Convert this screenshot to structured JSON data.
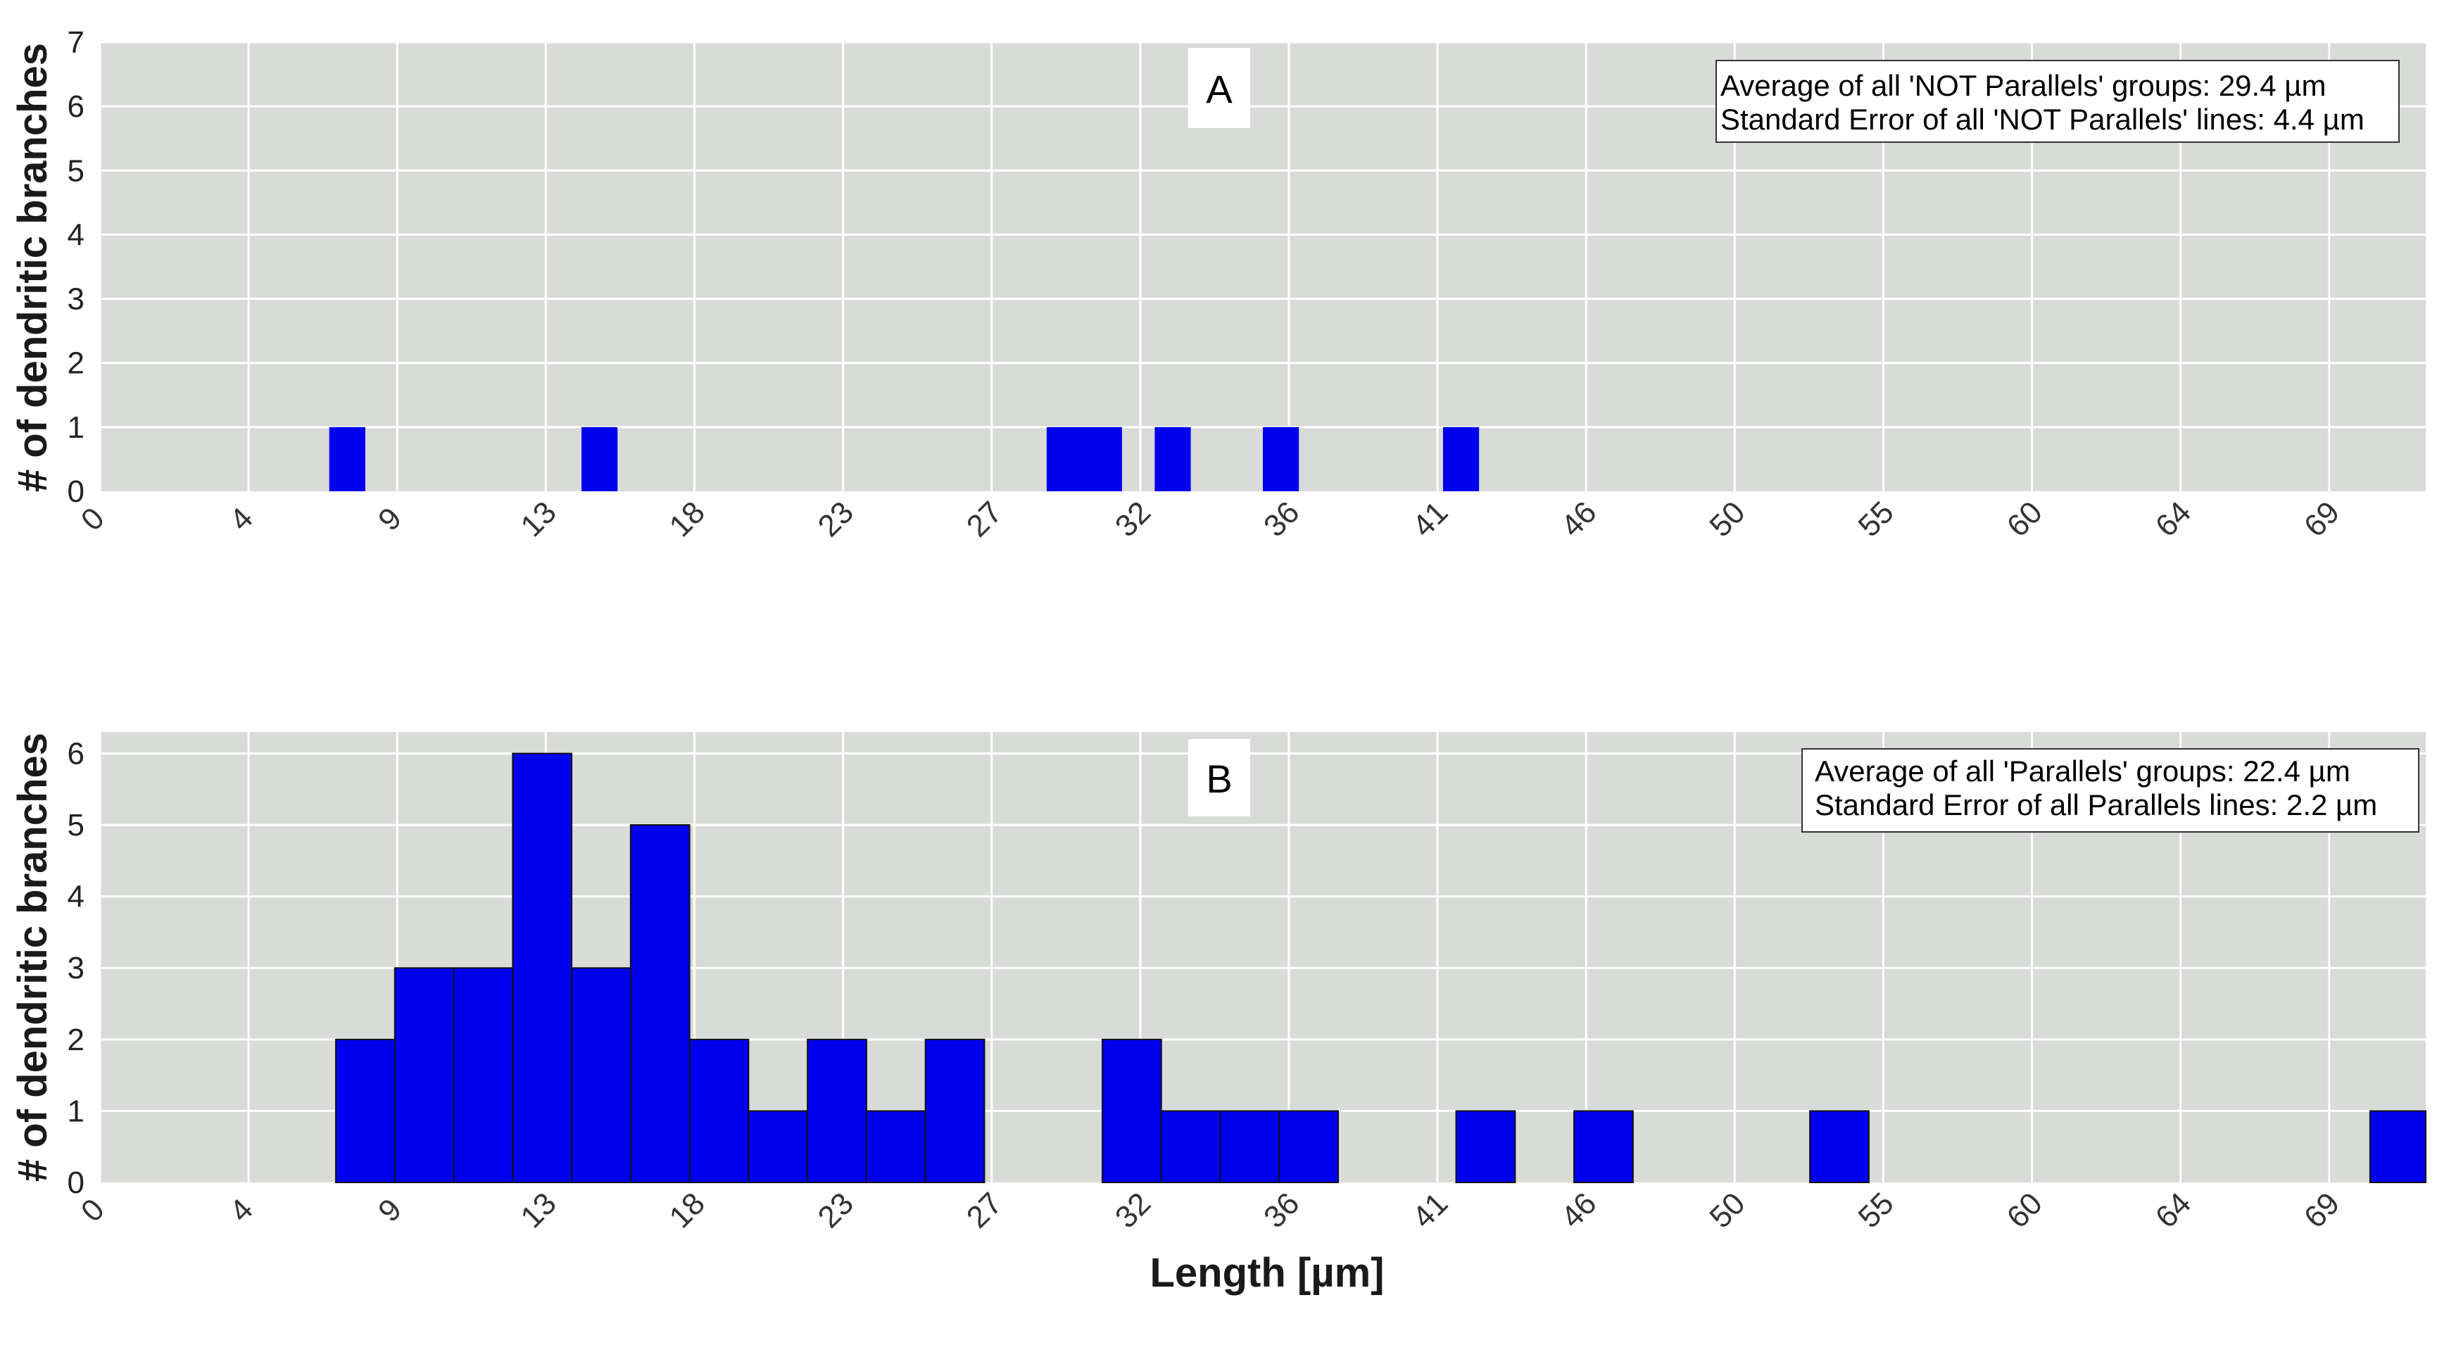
{
  "chart_data": [
    {
      "type": "bar",
      "panel_label": "A",
      "ylabel": "# of dendritic branches",
      "xlabel": "",
      "xticks": [
        "0",
        "4",
        "9",
        "13",
        "18",
        "23",
        "27",
        "32",
        "36",
        "41",
        "46",
        "50",
        "55",
        "60",
        "64",
        "69"
      ],
      "xlim": [
        0,
        71
      ],
      "yticks": [
        "0",
        "1",
        "2",
        "3",
        "4",
        "5",
        "6",
        "7"
      ],
      "ylim": [
        0,
        7
      ],
      "grid": true,
      "bars": [
        {
          "x0": 7.0,
          "x1": 8.1,
          "value": 1
        },
        {
          "x0": 14.7,
          "x1": 15.8,
          "value": 1
        },
        {
          "x0": 28.9,
          "x1": 31.2,
          "value": 1
        },
        {
          "x0": 32.2,
          "x1": 33.3,
          "value": 1
        },
        {
          "x0": 35.5,
          "x1": 36.6,
          "value": 1
        },
        {
          "x0": 41.0,
          "x1": 42.1,
          "value": 1
        }
      ],
      "annotation_lines": [
        "Average of all 'NOT Parallels' groups: 29.4 µm",
        "Standard Error of all 'NOT Parallels' lines: 4.4 µm"
      ],
      "bar_color": "#0000ee"
    },
    {
      "type": "bar",
      "panel_label": "B",
      "ylabel": "# of dendritic branches",
      "xlabel": "Length [µm]",
      "xticks": [
        "0",
        "4",
        "9",
        "13",
        "18",
        "23",
        "27",
        "32",
        "36",
        "41",
        "46",
        "50",
        "55",
        "60",
        "64",
        "69"
      ],
      "xlim": [
        0,
        71
      ],
      "yticks": [
        "0",
        "1",
        "2",
        "3",
        "4",
        "5",
        "6"
      ],
      "ylim": [
        0,
        6.3
      ],
      "grid": true,
      "bars": [
        {
          "x0": 7.2,
          "x1": 9.0,
          "value": 2
        },
        {
          "x0": 9.0,
          "x1": 10.8,
          "value": 3
        },
        {
          "x0": 10.8,
          "x1": 12.6,
          "value": 3
        },
        {
          "x0": 12.6,
          "x1": 14.4,
          "value": 6
        },
        {
          "x0": 14.4,
          "x1": 16.2,
          "value": 3
        },
        {
          "x0": 16.2,
          "x1": 18.0,
          "value": 5
        },
        {
          "x0": 18.0,
          "x1": 19.8,
          "value": 2
        },
        {
          "x0": 19.8,
          "x1": 21.6,
          "value": 1
        },
        {
          "x0": 21.6,
          "x1": 23.4,
          "value": 2
        },
        {
          "x0": 23.4,
          "x1": 25.2,
          "value": 1
        },
        {
          "x0": 25.2,
          "x1": 27.0,
          "value": 2
        },
        {
          "x0": 30.6,
          "x1": 32.4,
          "value": 2
        },
        {
          "x0": 32.4,
          "x1": 34.2,
          "value": 1
        },
        {
          "x0": 34.2,
          "x1": 36.0,
          "value": 1
        },
        {
          "x0": 36.0,
          "x1": 37.8,
          "value": 1
        },
        {
          "x0": 41.4,
          "x1": 43.2,
          "value": 1
        },
        {
          "x0": 45.0,
          "x1": 46.8,
          "value": 1
        },
        {
          "x0": 52.2,
          "x1": 54.0,
          "value": 1
        },
        {
          "x0": 69.3,
          "x1": 71.0,
          "value": 1
        }
      ],
      "annotation_lines": [
        "Average of all 'Parallels' groups: 22.4 µm",
        "Standard Error of all Parallels lines: 2.2 µm"
      ],
      "bar_color": "#0000ee"
    }
  ]
}
